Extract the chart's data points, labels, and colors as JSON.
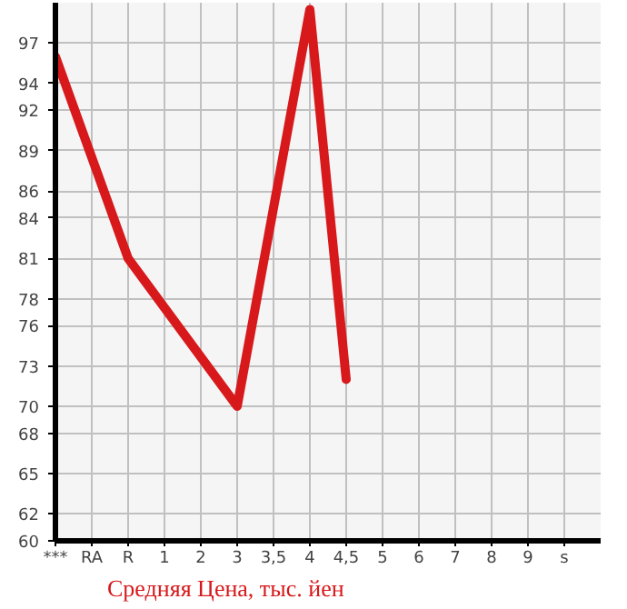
{
  "chart_data": {
    "type": "line",
    "categories": [
      "***",
      "RA",
      "R",
      "1",
      "2",
      "3",
      "3,5",
      "4",
      "4,5",
      "5",
      "6",
      "7",
      "8",
      "9",
      "s"
    ],
    "series": [
      {
        "name": "Средняя Цена, тыс. йен",
        "color": "#d7191c",
        "values": [
          96,
          null,
          81,
          null,
          null,
          70,
          null,
          99.5,
          72,
          null,
          null,
          null,
          null,
          null,
          null
        ]
      }
    ],
    "ylim": [
      60,
      100
    ],
    "yticks": [
      60,
      62,
      65,
      68,
      70,
      73,
      76,
      78,
      81,
      84,
      86,
      89,
      92,
      94,
      97
    ],
    "grid": true,
    "legend": "bottom"
  }
}
